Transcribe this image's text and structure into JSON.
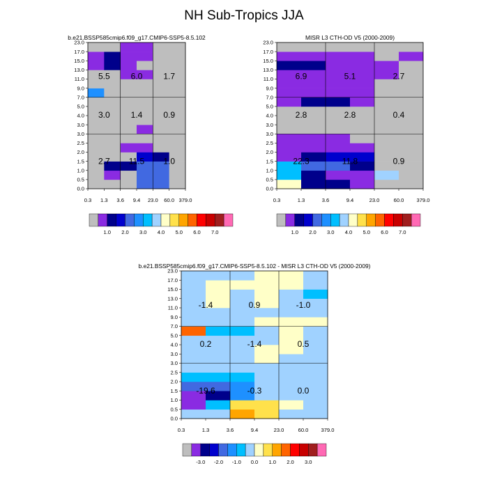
{
  "title": "NH Sub-Tropics JJA",
  "x_ticks": [
    "0.3",
    "1.3",
    "3.6",
    "9.4",
    "23.0",
    "60.0",
    "379.0"
  ],
  "y_ticks": [
    "0.0",
    "0.5",
    "1.0",
    "1.5",
    "2.0",
    "2.5",
    "3.0",
    "3.0",
    "4.0",
    "5.0",
    "7.0",
    "9.0",
    "11.0",
    "13.0",
    "15.0",
    "17.0",
    "23.0"
  ],
  "colorbar_abs": {
    "colors": [
      "#bebebe",
      "#8a2be2",
      "#00008b",
      "#0000cd",
      "#4169e1",
      "#1e90ff",
      "#00bfff",
      "#a0d2ff",
      "#ffffc8",
      "#ffe14b",
      "#ffa500",
      "#ff6400",
      "#ff0000",
      "#c80000",
      "#a01e1e",
      "#ff69b4"
    ],
    "labels": [
      "1.0",
      "2.0",
      "3.0",
      "4.0",
      "5.0",
      "6.0",
      "7.0"
    ]
  },
  "colorbar_diff": {
    "colors": [
      "#bebebe",
      "#8a2be2",
      "#00008b",
      "#0000cd",
      "#4169e1",
      "#1e90ff",
      "#00bfff",
      "#a0d2ff",
      "#ffffc8",
      "#ffe14b",
      "#ffa500",
      "#ff6400",
      "#ff0000",
      "#c80000",
      "#a01e1e",
      "#ff69b4"
    ],
    "labels": [
      "-3.0",
      "-2.0",
      "-1.0",
      "0.0",
      "1.0",
      "2.0",
      "3.0"
    ]
  },
  "chart_data": [
    {
      "type": "heatmap",
      "title": "b.e21.BSSP585cmip6.f09_g17.CMIP6-SSP5-8.5.102",
      "x_edges": [
        0.3,
        1.3,
        3.6,
        9.4,
        23.0,
        60.0,
        379.0
      ],
      "y_edges_label": [
        "0.0",
        "0.5",
        "1.0",
        "1.5",
        "2.0",
        "2.5",
        "3.0",
        "3.0",
        "4.0",
        "5.0",
        "7.0",
        "9.0",
        "11.0",
        "13.0",
        "15.0",
        "17.0",
        "23.0"
      ],
      "cells": [
        [
          0,
          0,
          0,
          4,
          4,
          0
        ],
        [
          0,
          1,
          0,
          4,
          4,
          0
        ],
        [
          0,
          2,
          2,
          4,
          4,
          0
        ],
        [
          0,
          0,
          0,
          3,
          2,
          0
        ],
        [
          0,
          0,
          1,
          1,
          0,
          0
        ],
        [
          0,
          0,
          0,
          0,
          0,
          0
        ],
        [
          0,
          0,
          0,
          1,
          0,
          0
        ],
        [
          0,
          0,
          0,
          0,
          0,
          0
        ],
        [
          0,
          0,
          0,
          0,
          0,
          0
        ],
        [
          0,
          0,
          0,
          0,
          0,
          0
        ],
        [
          5,
          0,
          0,
          0,
          0,
          0
        ],
        [
          0,
          0,
          0,
          0,
          0,
          0
        ],
        [
          0,
          0,
          1,
          1,
          0,
          0
        ],
        [
          1,
          2,
          1,
          0,
          0,
          0
        ],
        [
          1,
          2,
          1,
          1,
          0,
          0
        ],
        [
          0,
          0,
          1,
          1,
          0,
          0
        ]
      ],
      "region_values": [
        [
          "5.5",
          "6.0",
          "1.7"
        ],
        [
          "3.0",
          "1.4",
          "0.9"
        ],
        [
          "2.7",
          "11.5",
          "1.0"
        ]
      ]
    },
    {
      "type": "heatmap",
      "title": "MISR L3 CTH-OD V5 (2000-2009)",
      "x_edges": [
        0.3,
        1.3,
        3.6,
        9.4,
        23.0,
        60.0,
        379.0
      ],
      "y_edges_label": [
        "0.0",
        "0.5",
        "1.0",
        "1.5",
        "2.0",
        "2.5",
        "3.0",
        "3.0",
        "4.0",
        "5.0",
        "7.0",
        "9.0",
        "11.0",
        "13.0",
        "15.0",
        "17.0",
        "23.0"
      ],
      "cells": [
        [
          8,
          2,
          2,
          1,
          0,
          0
        ],
        [
          6,
          2,
          1,
          1,
          7,
          0
        ],
        [
          6,
          4,
          4,
          2,
          0,
          0
        ],
        [
          1,
          2,
          3,
          3,
          0,
          0
        ],
        [
          1,
          1,
          1,
          1,
          0,
          0
        ],
        [
          1,
          1,
          1,
          0,
          0,
          0
        ],
        [
          0,
          0,
          0,
          0,
          0,
          0
        ],
        [
          0,
          0,
          0,
          0,
          0,
          0
        ],
        [
          0,
          0,
          0,
          0,
          0,
          0
        ],
        [
          1,
          2,
          2,
          1,
          0,
          0
        ],
        [
          1,
          1,
          1,
          1,
          0,
          0
        ],
        [
          1,
          1,
          1,
          1,
          0,
          0
        ],
        [
          1,
          1,
          1,
          1,
          1,
          0
        ],
        [
          2,
          2,
          1,
          1,
          1,
          0
        ],
        [
          1,
          1,
          1,
          1,
          0,
          1
        ],
        [
          0,
          0,
          0,
          0,
          0,
          0
        ]
      ],
      "region_values": [
        [
          "6.9",
          "5.1",
          "2.7"
        ],
        [
          "2.8",
          "2.8",
          "0.4"
        ],
        [
          "22.3",
          "11.8",
          "0.9"
        ]
      ]
    },
    {
      "type": "heatmap",
      "title": "b.e21.BSSP585cmip6.f09_g17.CMIP6-SSP5-8.5.102 - MISR L3 CTH-OD V5 (2000-2009)",
      "x_edges": [
        0.3,
        1.3,
        3.6,
        9.4,
        23.0,
        60.0,
        379.0
      ],
      "y_edges_label": [
        "0.0",
        "0.5",
        "1.0",
        "1.5",
        "2.0",
        "2.5",
        "3.0",
        "3.0",
        "4.0",
        "5.0",
        "7.0",
        "9.0",
        "11.0",
        "13.0",
        "15.0",
        "17.0",
        "23.0"
      ],
      "cells": [
        [
          7,
          7,
          10,
          9,
          7,
          7
        ],
        [
          1,
          6,
          9,
          9,
          8,
          7
        ],
        [
          1,
          2,
          5,
          7,
          7,
          7
        ],
        [
          4,
          4,
          5,
          7,
          7,
          7
        ],
        [
          6,
          6,
          6,
          7,
          7,
          7
        ],
        [
          7,
          7,
          7,
          7,
          7,
          7
        ],
        [
          7,
          7,
          7,
          8,
          7,
          7
        ],
        [
          7,
          7,
          7,
          8,
          8,
          7
        ],
        [
          7,
          7,
          7,
          7,
          8,
          7
        ],
        [
          11,
          6,
          6,
          7,
          8,
          7
        ],
        [
          7,
          7,
          7,
          8,
          8,
          8
        ],
        [
          7,
          7,
          7,
          7,
          7,
          7
        ],
        [
          7,
          8,
          7,
          8,
          7,
          7
        ],
        [
          7,
          8,
          7,
          8,
          7,
          6
        ],
        [
          7,
          8,
          8,
          8,
          8,
          7
        ],
        [
          7,
          7,
          7,
          8,
          8,
          7
        ]
      ],
      "region_values": [
        [
          "-1.4",
          "0.9",
          "-1.0"
        ],
        [
          "0.2",
          "-1.4",
          "0.5"
        ],
        [
          "-19.6",
          "-0.3",
          "0.0"
        ]
      ]
    }
  ]
}
